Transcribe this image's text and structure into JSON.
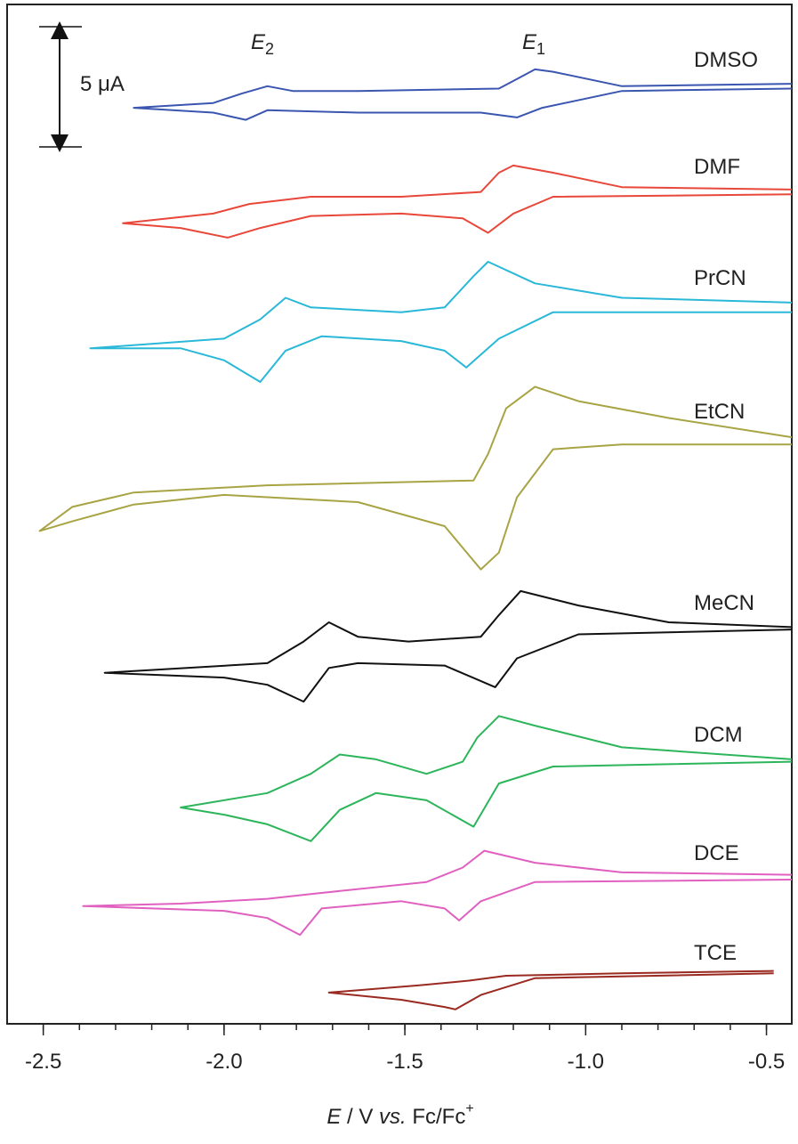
{
  "chart_data": {
    "type": "line",
    "x_label": {
      "parts": [
        "E",
        " / V ",
        "vs.",
        " Fc/Fc",
        "+"
      ]
    },
    "annotations": [
      {
        "text": "E",
        "sub": "2"
      },
      {
        "text": "E",
        "sub": "1"
      }
    ],
    "scale_bar": {
      "value": 5,
      "label": "5 μA"
    },
    "xlim": [
      -2.6,
      -0.43
    ],
    "ylim": [
      0,
      42.4
    ],
    "xticks": [
      -2.5,
      {
        "value": -2,
        "label": "-2.0"
      },
      -1.5,
      {
        "value": -1,
        "label": "-1.0"
      },
      -0.5
    ],
    "xminorticks": [
      -2.5,
      -2.4,
      -2.3,
      -2.2,
      -2.1,
      -2,
      -1.9,
      -1.8,
      -1.7,
      -1.6,
      -1.5,
      -1.4,
      -1.3,
      -1.2,
      -1.1,
      -1,
      -0.9,
      -0.8,
      -0.7,
      -0.6,
      -0.5
    ],
    "series": [
      {
        "name": "DMSO",
        "color": "#3a56b0",
        "x": [
          -0.43,
          -0.9,
          -1.09,
          -1.14,
          -1.19,
          -1.24,
          -1.63,
          -1.81,
          -1.88,
          -1.95,
          -2.03,
          -2.25,
          -2.03,
          -1.94,
          -1.88,
          -1.63,
          -1.29,
          -1.19,
          -1.12,
          -0.9,
          -0.43
        ],
        "values": [
          39.1,
          39.0,
          39.6,
          39.7,
          39.3,
          38.9,
          38.8,
          38.8,
          39.0,
          38.7,
          38.3,
          38.1,
          37.9,
          37.6,
          38.0,
          37.9,
          37.9,
          37.7,
          38.1,
          38.8,
          38.9
        ]
      },
      {
        "name": "DMF",
        "color": "#e8473a",
        "x": [
          -0.43,
          -0.9,
          -1.09,
          -1.2,
          -1.24,
          -1.29,
          -1.51,
          -1.76,
          -1.93,
          -2.03,
          -2.28,
          -2.12,
          -1.99,
          -1.9,
          -1.76,
          -1.51,
          -1.34,
          -1.27,
          -1.2,
          -1.09,
          -0.43
        ],
        "values": [
          34.7,
          34.8,
          35.4,
          35.7,
          35.4,
          34.6,
          34.4,
          34.4,
          34.1,
          33.7,
          33.3,
          33.1,
          32.7,
          33.1,
          33.6,
          33.7,
          33.5,
          32.9,
          33.7,
          34.4,
          34.5
        ]
      },
      {
        "name": "PrCN",
        "color": "#2ab8d8",
        "x": [
          -0.43,
          -0.9,
          -1.14,
          -1.27,
          -1.31,
          -1.39,
          -1.51,
          -1.76,
          -1.83,
          -1.9,
          -2.0,
          -2.37,
          -2.12,
          -2.0,
          -1.9,
          -1.83,
          -1.73,
          -1.51,
          -1.39,
          -1.33,
          -1.24,
          -1.09,
          -0.43
        ],
        "values": [
          30.0,
          30.2,
          30.8,
          31.7,
          31.1,
          29.8,
          29.6,
          29.8,
          30.2,
          29.3,
          28.5,
          28.1,
          28.1,
          27.6,
          26.7,
          28.0,
          28.6,
          28.4,
          28.0,
          27.3,
          28.5,
          29.6,
          29.6
        ]
      },
      {
        "name": "EtCN",
        "color": "#a8a444",
        "x": [
          -0.43,
          -0.77,
          -1.02,
          -1.14,
          -1.22,
          -1.27,
          -1.31,
          -1.88,
          -2.25,
          -2.42,
          -2.51,
          -2.42,
          -2.25,
          -2.0,
          -1.63,
          -1.39,
          -1.29,
          -1.24,
          -1.19,
          -1.09,
          -0.9,
          -0.43
        ],
        "values": [
          24.4,
          25.2,
          25.9,
          26.5,
          25.6,
          23.7,
          22.6,
          22.4,
          22.1,
          21.5,
          20.5,
          20.9,
          21.6,
          22.0,
          21.7,
          20.7,
          18.9,
          19.6,
          21.9,
          23.9,
          24.1,
          24.1
        ]
      },
      {
        "name": "MeCN",
        "color": "#111111",
        "x": [
          -0.43,
          -0.77,
          -1.02,
          -1.18,
          -1.24,
          -1.29,
          -1.49,
          -1.63,
          -1.71,
          -1.78,
          -1.88,
          -2.33,
          -2.0,
          -1.88,
          -1.78,
          -1.71,
          -1.63,
          -1.39,
          -1.25,
          -1.19,
          -1.02,
          -0.43
        ],
        "values": [
          16.5,
          16.7,
          17.4,
          18.0,
          17.0,
          16.1,
          15.9,
          16.1,
          16.7,
          15.9,
          15.0,
          14.6,
          14.4,
          14.1,
          13.4,
          14.8,
          15.0,
          14.9,
          14.0,
          15.2,
          16.2,
          16.4
        ]
      },
      {
        "name": "DCM",
        "color": "#2cb55a",
        "x": [
          -0.43,
          -0.9,
          -1.14,
          -1.24,
          -1.3,
          -1.34,
          -1.44,
          -1.58,
          -1.68,
          -1.76,
          -1.88,
          -2.12,
          -2.0,
          -1.88,
          -1.76,
          -1.68,
          -1.58,
          -1.44,
          -1.31,
          -1.24,
          -1.09,
          -0.43
        ],
        "values": [
          11.0,
          11.5,
          12.4,
          12.8,
          11.9,
          10.9,
          10.4,
          11.0,
          11.2,
          10.4,
          9.6,
          9.0,
          8.7,
          8.3,
          7.6,
          8.9,
          9.6,
          9.3,
          8.2,
          10.0,
          10.7,
          10.9
        ]
      },
      {
        "name": "DCE",
        "color": "#e060c0",
        "x": [
          -0.43,
          -0.9,
          -1.14,
          -1.28,
          -1.34,
          -1.44,
          -1.76,
          -1.88,
          -2.12,
          -2.39,
          -2.0,
          -1.88,
          -1.79,
          -1.73,
          -1.51,
          -1.39,
          -1.35,
          -1.29,
          -1.14,
          -0.43
        ],
        "values": [
          6.2,
          6.3,
          6.7,
          7.2,
          6.5,
          5.9,
          5.4,
          5.2,
          5.0,
          4.9,
          4.7,
          4.4,
          3.7,
          4.8,
          5.1,
          4.8,
          4.3,
          5.1,
          5.9,
          6.0
        ]
      },
      {
        "name": "TCE",
        "color": "#9a2a20",
        "x": [
          -0.48,
          -0.9,
          -1.22,
          -1.32,
          -1.46,
          -1.71,
          -1.51,
          -1.39,
          -1.36,
          -1.29,
          -1.14,
          -0.48
        ],
        "values": [
          2.2,
          2.1,
          2.0,
          1.8,
          1.6,
          1.3,
          1.0,
          0.7,
          0.6,
          1.2,
          1.9,
          2.1
        ]
      }
    ]
  }
}
